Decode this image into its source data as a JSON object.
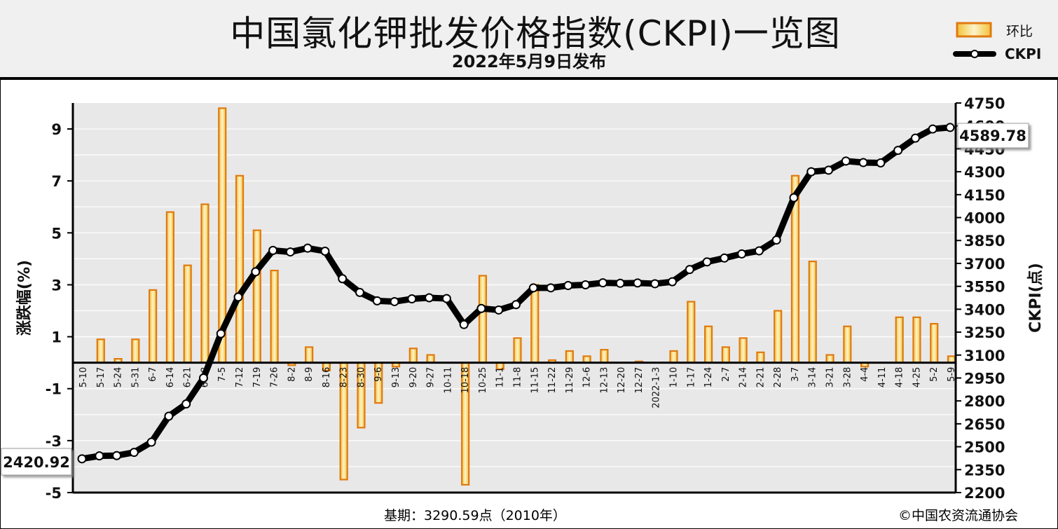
{
  "header": {
    "title": "中国氯化钾批发价格指数(CKPI)一览图",
    "subtitle": "2022年5月9日发布"
  },
  "legend": {
    "bar_label": "环比",
    "line_label": "CKPI",
    "placement": "top-right"
  },
  "footer": {
    "base": "基期：3290.59点（2010年）",
    "copyright": "©中国农资流通协会"
  },
  "colors": {
    "bar_stroke": "#e07a10",
    "bar_fill_edge": "#f3c23a",
    "bar_fill_center": "#fbf3c8",
    "line": "#000000",
    "plot_background": "#e8e8e8",
    "grid": "#ffffff"
  },
  "chart_data": {
    "type": "bar+line",
    "categories": [
      "5-10",
      "5-17",
      "5-24",
      "5-31",
      "6-7",
      "6-14",
      "6-21",
      "6-28",
      "7-5",
      "7-12",
      "7-19",
      "7-26",
      "8-2",
      "8-9",
      "8-16",
      "8-23",
      "8-30",
      "9-6",
      "9-13",
      "9-20",
      "9-27",
      "10-11",
      "10-18",
      "10-25",
      "11-1",
      "11-8",
      "11-15",
      "11-22",
      "11-29",
      "12-6",
      "12-13",
      "12-20",
      "12-27",
      "2022-1-3",
      "1-10",
      "1-17",
      "1-24",
      "2-7",
      "2-14",
      "2-21",
      "2-28",
      "3-7",
      "3-14",
      "3-21",
      "3-28",
      "4-4",
      "4-11",
      "4-18",
      "4-25",
      "5-2",
      "5-9"
    ],
    "series": [
      {
        "name": "环比",
        "type": "bar",
        "axis": "left",
        "values": [
          null,
          0.9,
          0.15,
          0.9,
          2.8,
          5.8,
          3.75,
          6.1,
          9.8,
          7.2,
          5.1,
          3.55,
          -0.1,
          0.6,
          -0.3,
          -4.5,
          -2.5,
          -1.55,
          -0.15,
          0.55,
          0.3,
          0,
          -4.7,
          3.35,
          -0.25,
          0.95,
          3.0,
          0.1,
          0.45,
          0.25,
          0.5,
          0,
          0.05,
          0,
          0.45,
          2.35,
          1.4,
          0.6,
          0.95,
          0.4,
          2.0,
          7.2,
          3.9,
          0.3,
          1.4,
          -0.15,
          0,
          1.75,
          1.75,
          1.5,
          0.25
        ]
      },
      {
        "name": "CKPI",
        "type": "line",
        "axis": "right",
        "values": [
          2420.92,
          2440,
          2442,
          2463,
          2530,
          2700,
          2780,
          2950,
          3240,
          3480,
          3645,
          3785,
          3775,
          3800,
          3780,
          3600,
          3510,
          3455,
          3450,
          3468,
          3475,
          3470,
          3300,
          3405,
          3395,
          3430,
          3540,
          3540,
          3555,
          3560,
          3573,
          3570,
          3572,
          3567,
          3580,
          3660,
          3710,
          3735,
          3762,
          3782,
          3853,
          4130,
          4300,
          4310,
          4370,
          4360,
          4358,
          4440,
          4520,
          4580,
          4589.78
        ]
      }
    ],
    "y_left": {
      "label": "涨跌幅(%)",
      "range": [
        -5,
        10
      ],
      "ticks": [
        9,
        7,
        5,
        3,
        1,
        -1,
        -3,
        -5
      ],
      "tick_labels": [
        "9",
        "7",
        "5",
        "3",
        "1",
        "-1",
        "-3",
        "-5"
      ]
    },
    "y_right": {
      "label": "CKPI(点)",
      "range": [
        2200,
        4750
      ],
      "ticks": [
        4750,
        4600,
        4450,
        4300,
        4150,
        4000,
        3850,
        3700,
        3550,
        3400,
        3250,
        3100,
        2950,
        2800,
        2650,
        2500,
        2350,
        2200
      ],
      "tick_labels": [
        "4750",
        "4600",
        "4450",
        "4300",
        "4150",
        "4000",
        "3850",
        "3700",
        "3550",
        "3400",
        "3250",
        "3100",
        "2950",
        "2800",
        "2650",
        "2500",
        "2350",
        "2200"
      ]
    },
    "annotations": [
      "2420.92",
      "4589.78"
    ],
    "grid": true
  }
}
